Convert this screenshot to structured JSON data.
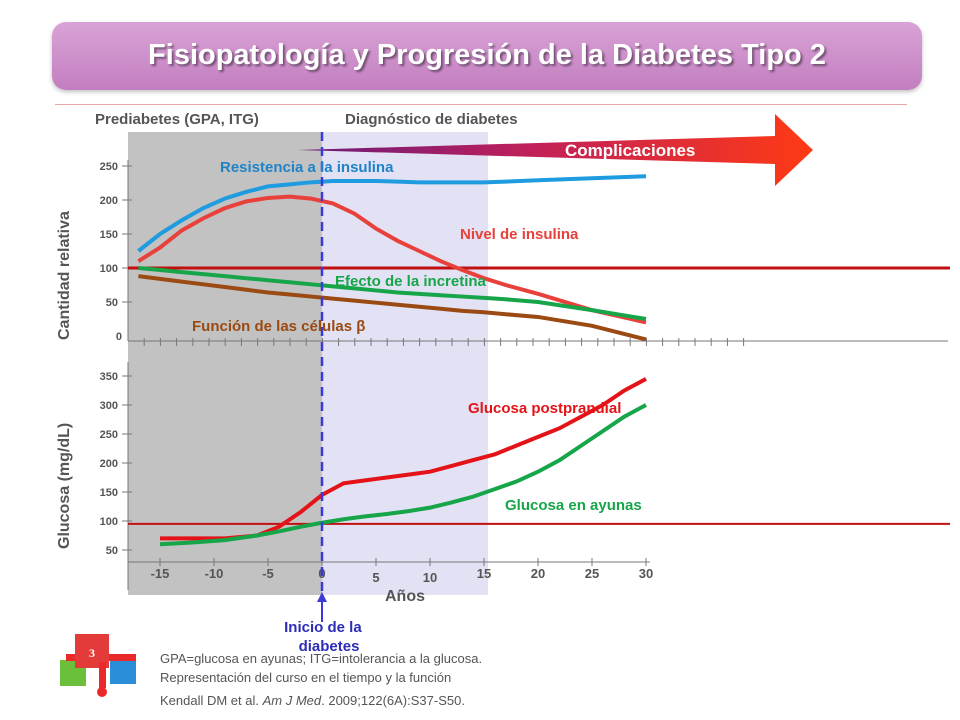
{
  "title": "Fisiopatología y Progresión de la Diabetes Tipo 2",
  "slide_number": "3",
  "footnotes": {
    "abbreviations": "GPA=glucosa en ayunas; ITG=intolerancia a la glucosa.",
    "representation": "Representación del curso en el  tiempo y la función",
    "citation_authors": "Kendall DM et al. ",
    "citation_journal": "Am J Med",
    "citation_rest": ". 2009;122(6A):S37-S50."
  },
  "colors": {
    "title_bar": "#c27ec0",
    "resistance": "#1f9be0",
    "insulin": "#e8413c",
    "incretin": "#17a54a",
    "beta": "#9a4a12",
    "postprandial": "#e31318",
    "fasting": "#17a54a",
    "reference": "#c01010",
    "onset": "#3a3ad8",
    "complications": "#ff3a14"
  },
  "chart_data": [
    {
      "type": "line",
      "phase_labels": {
        "prediabetes": "Prediabetes  (GPA, ITG)",
        "diagnosis": "Diagnóstico de diabetes"
      },
      "arrow_label": "Complicaciones",
      "ylabel": "Cantidad relativa",
      "ylim": [
        0,
        260
      ],
      "yticks": [
        0,
        50,
        100,
        150,
        200,
        250
      ],
      "xlim": [
        -17,
        30
      ],
      "reference_line": {
        "y": 100
      },
      "x": [
        -17,
        -15,
        -13,
        -11,
        -9,
        -7,
        -5,
        -3,
        -1,
        1,
        3,
        5,
        7,
        9,
        11,
        13,
        15,
        17,
        20,
        25,
        30
      ],
      "series": [
        {
          "name": "Resistencia a la insulina",
          "values": [
            125,
            150,
            170,
            188,
            202,
            212,
            220,
            223,
            226,
            228,
            228,
            228,
            227,
            226,
            226,
            226,
            226,
            227,
            229,
            232,
            235
          ]
        },
        {
          "name": "Nivel de insulina",
          "values": [
            110,
            130,
            155,
            173,
            188,
            198,
            203,
            205,
            202,
            195,
            180,
            158,
            140,
            125,
            110,
            97,
            85,
            75,
            62,
            38,
            20
          ]
        },
        {
          "name": "Efecto de la incretina",
          "values": [
            100,
            97,
            94,
            91,
            88,
            85,
            82,
            79,
            76,
            73,
            70,
            67,
            64,
            62,
            60,
            58,
            56,
            54,
            50,
            38,
            25
          ]
        },
        {
          "name": "Función de las células β",
          "values": [
            88,
            84,
            80,
            76,
            72,
            68,
            64,
            61,
            58,
            55,
            52,
            49,
            46,
            43,
            40,
            37,
            35,
            32,
            28,
            15,
            -5
          ]
        }
      ]
    },
    {
      "type": "line",
      "ylabel": "Glucosa (mg/dL)",
      "xlabel": "Años",
      "ylim": [
        50,
        350
      ],
      "yticks": [
        50,
        100,
        150,
        200,
        250,
        300,
        350
      ],
      "xticks": [
        -15,
        -10,
        -5,
        0,
        5,
        10,
        15,
        20,
        25,
        30
      ],
      "xlim": [
        -17,
        30
      ],
      "reference_line": {
        "y": 95
      },
      "onset": {
        "x": 0,
        "label": "Inicio de la diabetes"
      },
      "x": [
        -15,
        -12,
        -9,
        -6,
        -4,
        -2,
        0,
        2,
        4,
        6,
        8,
        10,
        12,
        14,
        16,
        18,
        20,
        22,
        24,
        26,
        28,
        30
      ],
      "series": [
        {
          "name": "Glucosa postprandial",
          "values": [
            70,
            70,
            70,
            75,
            90,
            115,
            145,
            165,
            170,
            175,
            180,
            185,
            195,
            205,
            215,
            230,
            245,
            260,
            280,
            300,
            325,
            345
          ]
        },
        {
          "name": "Glucosa en ayunas",
          "values": [
            60,
            63,
            67,
            75,
            82,
            90,
            97,
            103,
            108,
            112,
            117,
            123,
            132,
            142,
            155,
            168,
            185,
            205,
            230,
            255,
            280,
            300
          ]
        }
      ]
    }
  ]
}
